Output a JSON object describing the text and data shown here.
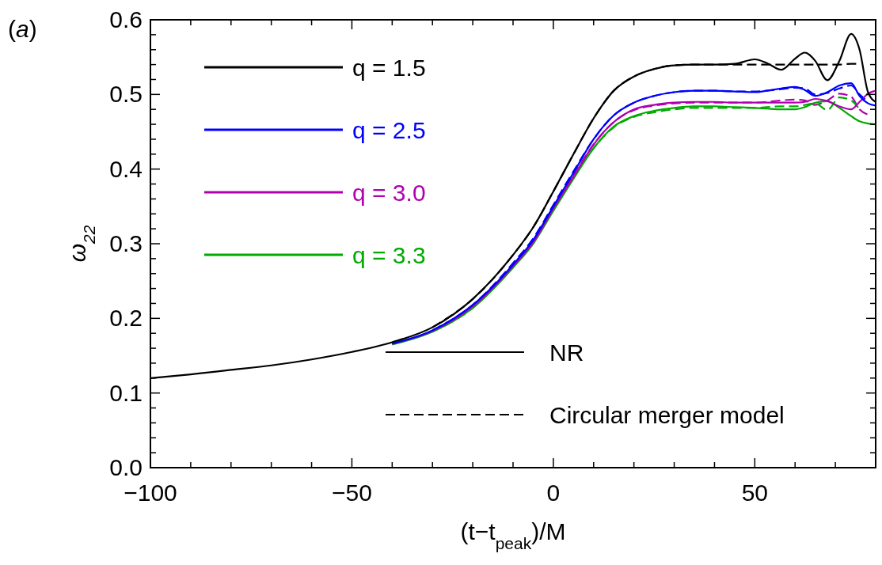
{
  "chart_data": {
    "type": "line",
    "xlabel": "(t−t$_{peak}$)/M",
    "ylabel": "ω$_{22}$",
    "annotations": [
      "(a)",
      "NR",
      "Circular merger model"
    ],
    "xlim": [
      -100,
      80
    ],
    "ylim": [
      0,
      0.6
    ],
    "xticks": [
      {
        "value": -100,
        "label": "−100"
      },
      {
        "value": -90,
        "label": null
      },
      {
        "value": -80,
        "label": null
      },
      {
        "value": -70,
        "label": null
      },
      {
        "value": -60,
        "label": null
      },
      {
        "value": -50,
        "label": "−50"
      },
      {
        "value": -40,
        "label": null
      },
      {
        "value": -30,
        "label": null
      },
      {
        "value": -20,
        "label": null
      },
      {
        "value": -10,
        "label": null
      },
      0,
      {
        "value": 10,
        "label": null
      },
      {
        "value": 20,
        "label": null
      },
      {
        "value": 30,
        "label": null
      },
      {
        "value": 40,
        "label": null
      },
      50,
      {
        "value": 60,
        "label": null
      },
      {
        "value": 70,
        "label": null
      }
    ],
    "yticks": [
      {
        "value": 0,
        "label": "0.0"
      },
      0.1,
      0.2,
      0.3,
      0.4,
      0.5,
      0.6
    ],
    "grid": false,
    "legend": "top left",
    "x": [
      -100,
      -90,
      -80,
      -70,
      -60,
      -50,
      -40,
      -30,
      -20,
      -10,
      -5,
      0,
      5,
      10,
      15,
      20,
      25,
      30,
      35,
      40,
      45,
      50,
      53,
      56.6,
      60,
      62.4,
      65,
      68,
      71,
      73.9,
      76,
      78.1,
      80
    ],
    "series": [
      {
        "name": "q = 1.5",
        "color": "#000000",
        "line_style": "solid",
        "values": [
          0.12,
          0.125,
          0.131,
          0.137,
          0.145,
          0.155,
          0.168,
          0.188,
          0.226,
          0.285,
          0.322,
          0.37,
          0.42,
          0.468,
          0.505,
          0.524,
          0.534,
          0.539,
          0.54,
          0.54,
          0.541,
          0.547,
          0.542,
          0.533,
          0.548,
          0.556,
          0.545,
          0.519,
          0.545,
          0.581,
          0.56,
          0.503,
          0.49
        ]
      },
      {
        "color": "#000000",
        "line_style": "dashed",
        "values": [
          null,
          null,
          null,
          null,
          null,
          null,
          null,
          0.188,
          0.226,
          0.285,
          0.322,
          0.37,
          0.42,
          0.468,
          0.505,
          0.524,
          0.534,
          0.539,
          0.54,
          0.54,
          0.54,
          0.54,
          0.54,
          0.54,
          0.54,
          0.54,
          0.54,
          0.54,
          0.54,
          0.541,
          0.541,
          null,
          null
        ]
      },
      {
        "name": "q = 2.5",
        "color": "#0000ff",
        "line_style": "solid",
        "values": [
          null,
          null,
          null,
          null,
          null,
          null,
          0.166,
          0.184,
          0.218,
          0.272,
          0.305,
          0.35,
          0.395,
          0.44,
          0.472,
          0.489,
          0.498,
          0.503,
          0.505,
          0.505,
          0.504,
          0.503,
          0.505,
          0.508,
          0.51,
          0.506,
          0.498,
          0.503,
          0.512,
          0.515,
          0.498,
          0.488,
          0.485
        ]
      },
      {
        "color": "#0000ff",
        "line_style": "dashed",
        "values": [
          null,
          null,
          null,
          null,
          null,
          null,
          null,
          0.184,
          0.218,
          0.274,
          0.307,
          0.352,
          0.397,
          0.44,
          0.472,
          0.489,
          0.498,
          0.503,
          0.505,
          0.505,
          0.504,
          0.504,
          0.505,
          0.507,
          0.509,
          0.508,
          0.5,
          0.502,
          0.508,
          0.512,
          0.5,
          0.49,
          null
        ]
      },
      {
        "name": "q = 3.0",
        "color": "#b000b0",
        "line_style": "solid",
        "values": [
          null,
          null,
          null,
          null,
          null,
          null,
          0.166,
          0.183,
          0.216,
          0.27,
          0.302,
          0.347,
          0.39,
          0.433,
          0.463,
          0.48,
          0.486,
          0.489,
          0.49,
          0.49,
          0.489,
          0.489,
          0.489,
          0.489,
          0.489,
          0.49,
          0.494,
          0.491,
          0.484,
          0.48,
          0.49,
          0.501,
          0.505
        ]
      },
      {
        "color": "#b000b0",
        "line_style": "dashed",
        "values": [
          null,
          null,
          null,
          null,
          null,
          null,
          null,
          0.183,
          0.216,
          0.272,
          0.304,
          0.349,
          0.392,
          0.433,
          0.463,
          0.479,
          0.485,
          0.488,
          0.489,
          0.489,
          0.489,
          0.489,
          0.49,
          0.492,
          0.493,
          0.492,
          0.486,
          0.492,
          0.501,
          0.497,
          0.48,
          0.473,
          null
        ]
      },
      {
        "name": "q = 3.3",
        "color": "#00aa00",
        "line_style": "solid",
        "values": [
          null,
          null,
          null,
          null,
          null,
          null,
          0.165,
          0.182,
          0.214,
          0.268,
          0.3,
          0.344,
          0.387,
          0.428,
          0.457,
          0.471,
          0.478,
          0.482,
          0.484,
          0.484,
          0.483,
          0.482,
          0.481,
          0.48,
          0.48,
          0.483,
          0.489,
          0.491,
          0.482,
          0.471,
          0.464,
          0.461,
          0.46
        ]
      },
      {
        "color": "#00aa00",
        "line_style": "dashed",
        "values": [
          null,
          null,
          null,
          null,
          null,
          null,
          null,
          0.182,
          0.214,
          0.27,
          0.302,
          0.346,
          0.389,
          0.428,
          0.456,
          0.47,
          0.476,
          0.48,
          0.482,
          0.482,
          0.482,
          0.482,
          0.483,
          0.484,
          0.484,
          0.486,
          0.488,
          0.479,
          0.496,
          0.492,
          0.48,
          null,
          null
        ]
      }
    ]
  }
}
